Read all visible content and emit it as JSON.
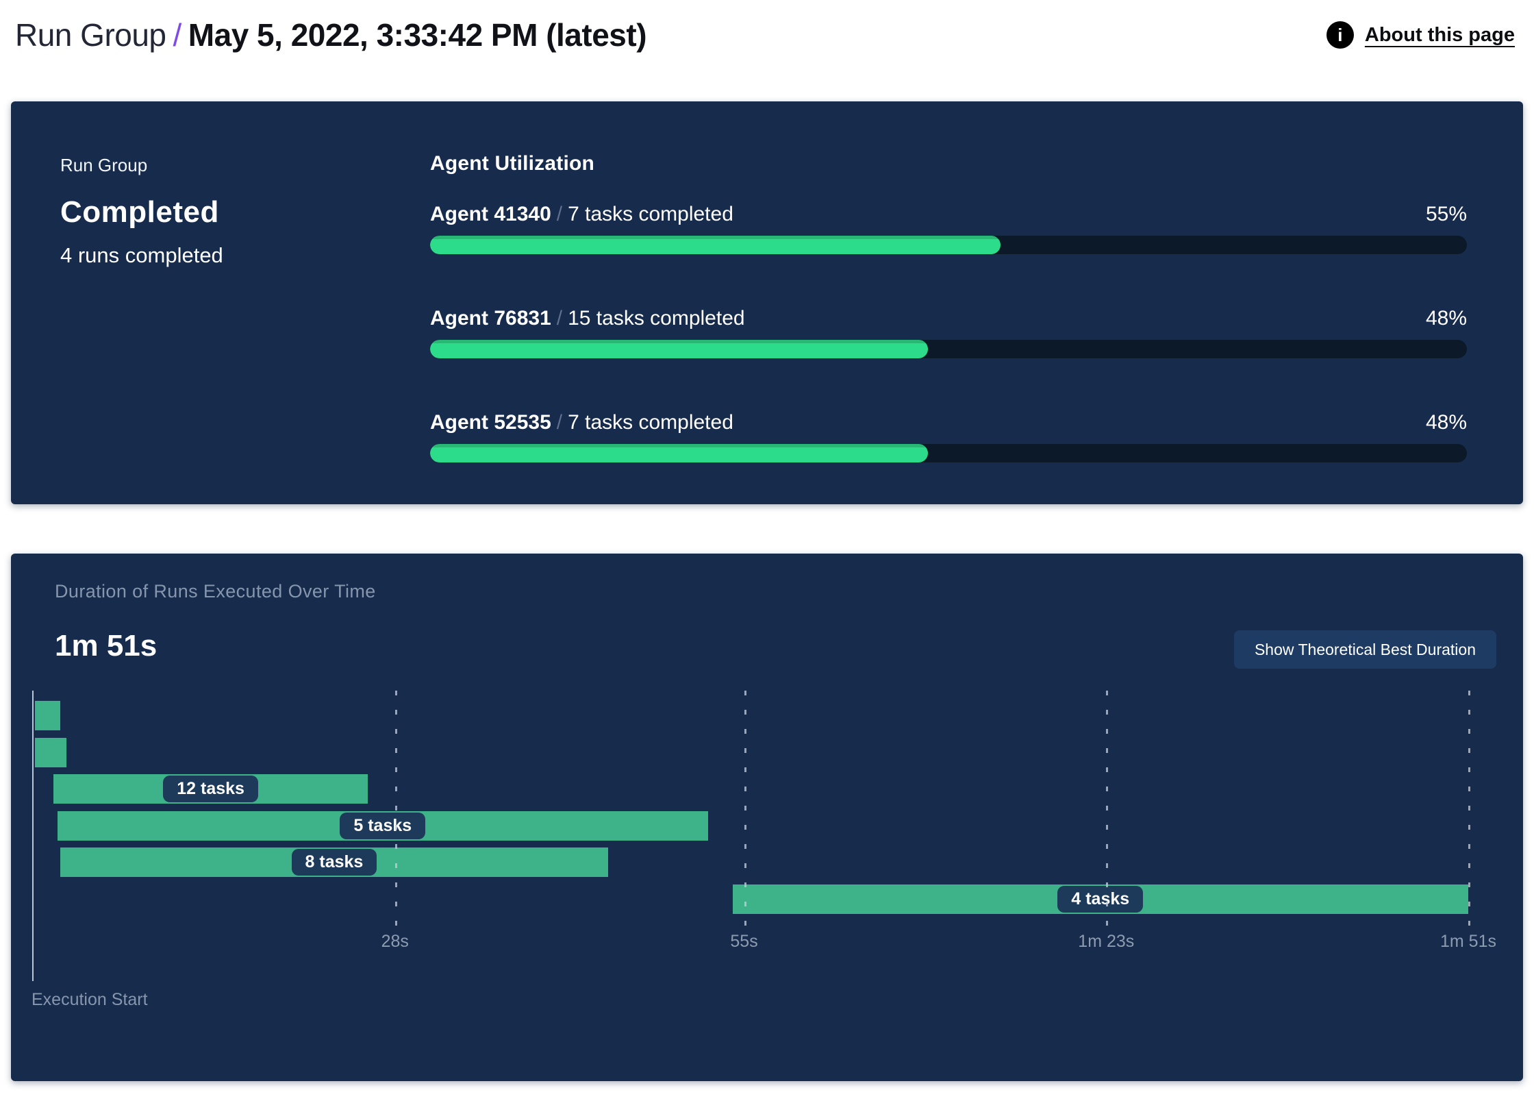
{
  "header": {
    "breadcrumb_root": "Run Group",
    "separator": "/",
    "title": "May 5, 2022, 3:33:42 PM (latest)",
    "info_glyph": "i",
    "about_link": "About this page"
  },
  "status_card": {
    "eyebrow": "Run Group",
    "status": "Completed",
    "subtitle": "4 runs completed",
    "utilization": {
      "title": "Agent Utilization",
      "separator": "/",
      "agents": [
        {
          "name": "Agent 41340",
          "detail": "7 tasks completed",
          "percent": "55%",
          "value": 55
        },
        {
          "name": "Agent 76831",
          "detail": "15 tasks completed",
          "percent": "48%",
          "value": 48
        },
        {
          "name": "Agent 52535",
          "detail": "7 tasks completed",
          "percent": "48%",
          "value": 48
        }
      ]
    }
  },
  "duration_card": {
    "title": "Duration of Runs Executed Over Time",
    "total_duration": "1m 51s",
    "button_label": "Show Theoretical Best Duration",
    "axis_label": "Execution Start",
    "chart_data": {
      "type": "gantt",
      "title": "Duration of Runs Executed Over Time",
      "x_unit": "seconds",
      "xlim": [
        0,
        111
      ],
      "grid": "dashed-vertical",
      "x_ticks": [
        {
          "s": 28,
          "label": "28s"
        },
        {
          "s": 55,
          "label": "55s"
        },
        {
          "s": 83,
          "label": "1m 23s"
        },
        {
          "s": 111,
          "label": "1m 51s"
        }
      ],
      "runs": [
        {
          "start_s": 0.15,
          "end_s": 2.1,
          "label": ""
        },
        {
          "start_s": 0.15,
          "end_s": 2.6,
          "label": ""
        },
        {
          "start_s": 1.6,
          "end_s": 25.9,
          "label": "12 tasks"
        },
        {
          "start_s": 1.9,
          "end_s": 52.2,
          "label": "5 tasks"
        },
        {
          "start_s": 2.1,
          "end_s": 44.5,
          "label": "8 tasks"
        },
        {
          "start_s": 54.1,
          "end_s": 111,
          "label": "4 tasks"
        }
      ]
    }
  },
  "colors": {
    "card_bg": "#172b4d",
    "progress_fill": "#2ddc8a",
    "progress_track": "#0c1929",
    "gantt_bar": "#3eb38a",
    "chip_bg": "#1d3a5a",
    "accent_purple": "#7c4be8",
    "muted_text": "#8696ad",
    "button_bg": "#1e3c63"
  }
}
